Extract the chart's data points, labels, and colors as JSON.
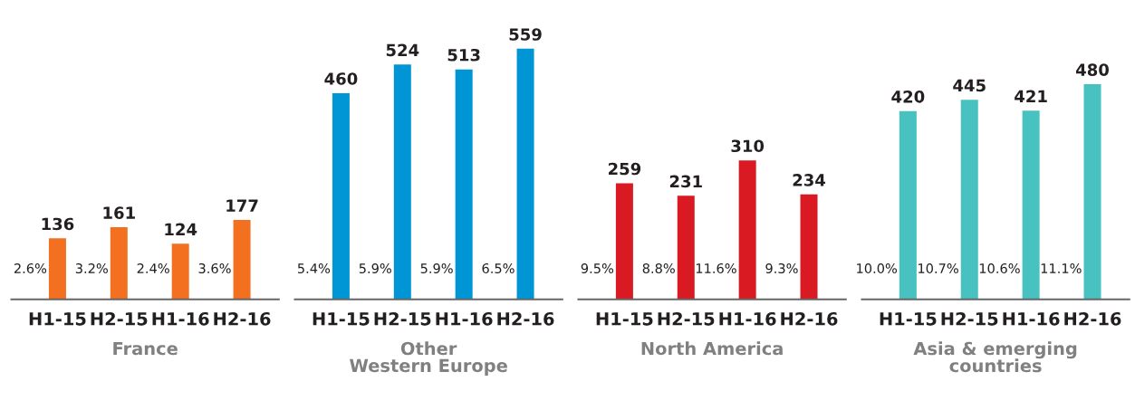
{
  "chart_data": [
    {
      "type": "bar",
      "xlabel": "France",
      "categories": [
        "H1-15",
        "H2-15",
        "H1-16",
        "H2-16"
      ],
      "values": [
        136,
        161,
        124,
        177
      ],
      "color": "#f37021",
      "data_labels": true,
      "tick_labels": "x",
      "annotations": [
        "2.6%",
        "3.2%",
        "2.4%",
        "3.6%"
      ]
    },
    {
      "type": "bar",
      "xlabel": "Other\nWestern Europe",
      "categories": [
        "H1-15",
        "H2-15",
        "H1-16",
        "H2-16"
      ],
      "values": [
        460,
        524,
        513,
        559
      ],
      "color": "#0096d6",
      "data_labels": true,
      "tick_labels": "x",
      "annotations": [
        "5.4%",
        "5.9%",
        "5.9%",
        "6.5%"
      ]
    },
    {
      "type": "bar",
      "xlabel": "North America",
      "categories": [
        "H1-15",
        "H2-15",
        "H1-16",
        "H2-16"
      ],
      "values": [
        259,
        231,
        310,
        234
      ],
      "color": "#da1a22",
      "data_labels": true,
      "tick_labels": "x",
      "annotations": [
        "9.5%",
        "8.8%",
        "11.6%",
        "9.3%"
      ]
    },
    {
      "type": "bar",
      "xlabel": "Asia & emerging\ncountries",
      "categories": [
        "H1-15",
        "H2-15",
        "H1-16",
        "H2-16"
      ],
      "values": [
        420,
        445,
        421,
        480
      ],
      "color": "#48c2c0",
      "data_labels": true,
      "tick_labels": "x",
      "annotations": [
        "10.0%",
        "10.7%",
        "10.6%",
        "11.1%"
      ]
    }
  ]
}
